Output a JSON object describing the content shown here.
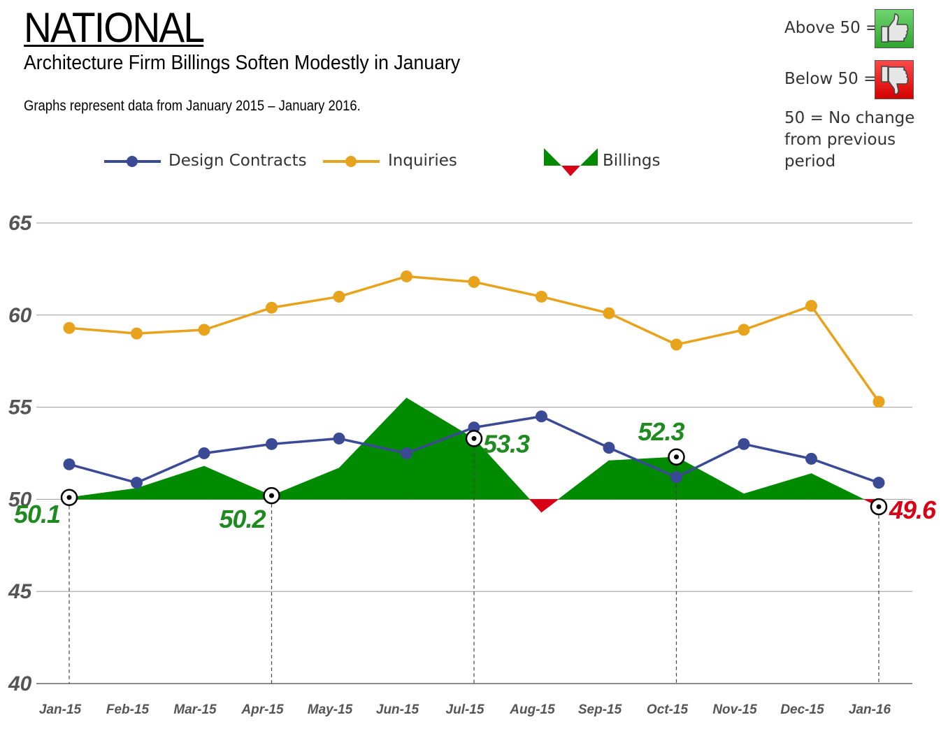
{
  "header": {
    "title": "NATIONAL",
    "subtitle": "Architecture Firm Billings Soften Modestly in January",
    "note": "Graphs represent data from January 2015 – January 2016."
  },
  "key": {
    "above": "Above 50 =",
    "below": "Below 50 =",
    "explain": "50 = No change from previous period",
    "above_icon": "thumbs-up-icon",
    "below_icon": "thumbs-down-icon"
  },
  "legend": {
    "design": "Design Contracts",
    "inquiries": "Inquiries",
    "billings": "Billings"
  },
  "colors": {
    "design": "#3b4a94",
    "inquiries": "#e8a31c",
    "billings_pos": "#008a00",
    "billings_neg": "#d70016",
    "pos_label": "#1f8a1f",
    "neg_label": "#d70016"
  },
  "chart_data": {
    "type": "line",
    "categories": [
      "Jan-15",
      "Feb-15",
      "Mar-15",
      "Apr-15",
      "May-15",
      "Jun-15",
      "Jul-15",
      "Aug-15",
      "Sep-15",
      "Oct-15",
      "Nov-15",
      "Dec-15",
      "Jan-16"
    ],
    "series": [
      {
        "name": "Design Contracts",
        "values": [
          51.9,
          50.9,
          52.5,
          53.0,
          53.3,
          52.5,
          53.9,
          54.5,
          52.8,
          51.2,
          53.0,
          52.2,
          50.9
        ]
      },
      {
        "name": "Inquiries",
        "values": [
          59.3,
          59.0,
          59.2,
          60.4,
          61.0,
          62.1,
          61.8,
          61.0,
          60.1,
          58.4,
          59.2,
          60.5,
          55.3
        ]
      },
      {
        "name": "Billings",
        "values": [
          50.1,
          50.6,
          51.8,
          50.2,
          51.7,
          55.5,
          53.3,
          49.3,
          52.1,
          52.3,
          50.3,
          51.4,
          49.6
        ]
      }
    ],
    "highlights": [
      {
        "index": 0,
        "label": "50.1"
      },
      {
        "index": 3,
        "label": "50.2"
      },
      {
        "index": 6,
        "label": "53.3"
      },
      {
        "index": 9,
        "label": "52.3"
      },
      {
        "index": 12,
        "label": "49.6"
      }
    ],
    "ylim": [
      40,
      65
    ],
    "yticks": [
      "40",
      "45",
      "50",
      "55",
      "60",
      "65"
    ],
    "baseline": 50,
    "grid": true
  }
}
